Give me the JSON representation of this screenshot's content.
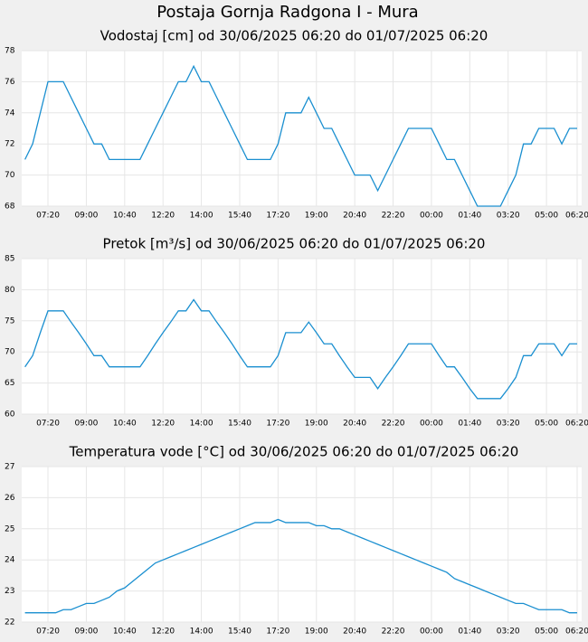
{
  "title": "Postaja Gornja Radgona I - Mura",
  "chart_data": [
    {
      "type": "line",
      "title": "Vodostaj [cm] od 30/06/2025 06:20 do 01/07/2025 06:20",
      "x": [
        "06:20",
        "06:40",
        "07:00",
        "07:20",
        "07:40",
        "08:00",
        "08:20",
        "08:40",
        "09:00",
        "09:20",
        "09:40",
        "10:00",
        "10:20",
        "10:40",
        "11:00",
        "11:20",
        "11:40",
        "12:00",
        "12:20",
        "12:40",
        "13:00",
        "13:20",
        "13:40",
        "14:00",
        "14:20",
        "14:40",
        "15:00",
        "15:20",
        "15:40",
        "16:00",
        "16:20",
        "16:40",
        "17:00",
        "17:20",
        "17:40",
        "18:00",
        "18:20",
        "18:40",
        "19:00",
        "19:20",
        "19:40",
        "20:00",
        "20:20",
        "20:40",
        "21:00",
        "21:20",
        "21:40",
        "22:00",
        "22:20",
        "22:40",
        "23:00",
        "23:20",
        "23:40",
        "00:00",
        "00:20",
        "00:40",
        "01:00",
        "01:20",
        "01:40",
        "02:00",
        "02:20",
        "02:40",
        "03:00",
        "03:20",
        "03:40",
        "04:00",
        "04:20",
        "04:40",
        "05:00",
        "05:20",
        "05:40",
        "06:00",
        "06:20"
      ],
      "series": [
        {
          "name": "Vodostaj",
          "color": "#1a8fd0",
          "values": [
            71,
            72,
            74,
            76,
            76,
            76,
            75,
            74,
            73,
            72,
            72,
            71,
            71,
            71,
            71,
            71,
            72,
            73,
            74,
            75,
            76,
            76,
            77,
            76,
            76,
            75,
            74,
            73,
            72,
            71,
            71,
            71,
            71,
            72,
            74,
            74,
            74,
            75,
            74,
            73,
            73,
            72,
            71,
            70,
            70,
            70,
            69,
            70,
            71,
            72,
            73,
            73,
            73,
            73,
            72,
            71,
            71,
            70,
            69,
            68,
            68,
            68,
            68,
            69,
            70,
            72,
            72,
            73,
            73,
            73,
            72,
            73,
            73
          ]
        }
      ],
      "xticks": [
        "07:20",
        "09:00",
        "10:40",
        "12:20",
        "14:00",
        "15:40",
        "17:20",
        "19:00",
        "20:40",
        "22:20",
        "00:00",
        "01:40",
        "03:20",
        "05:00",
        "06:20"
      ],
      "ylim": [
        68,
        78
      ],
      "yticks": [
        68,
        70,
        72,
        74,
        76,
        78
      ],
      "grid": true
    },
    {
      "type": "line",
      "title": "Pretok [m³/s] od 30/06/2025 06:20 do 01/07/2025 06:20",
      "x": [
        "06:20",
        "06:40",
        "07:00",
        "07:20",
        "07:40",
        "08:00",
        "08:20",
        "08:40",
        "09:00",
        "09:20",
        "09:40",
        "10:00",
        "10:20",
        "10:40",
        "11:00",
        "11:20",
        "11:40",
        "12:00",
        "12:20",
        "12:40",
        "13:00",
        "13:20",
        "13:40",
        "14:00",
        "14:20",
        "14:40",
        "15:00",
        "15:20",
        "15:40",
        "16:00",
        "16:20",
        "16:40",
        "17:00",
        "17:20",
        "17:40",
        "18:00",
        "18:20",
        "18:40",
        "19:00",
        "19:20",
        "19:40",
        "20:00",
        "20:20",
        "20:40",
        "21:00",
        "21:20",
        "21:40",
        "22:00",
        "22:20",
        "22:40",
        "23:00",
        "23:20",
        "23:40",
        "00:00",
        "00:20",
        "00:40",
        "01:00",
        "01:20",
        "01:40",
        "02:00",
        "02:20",
        "02:40",
        "03:00",
        "03:20",
        "03:40",
        "04:00",
        "04:20",
        "04:40",
        "05:00",
        "05:20",
        "05:40",
        "06:00",
        "06:20"
      ],
      "series": [
        {
          "name": "Pretok",
          "color": "#1a8fd0",
          "values": [
            67.6,
            69.4,
            73.1,
            76.6,
            76.6,
            76.6,
            74.8,
            73.1,
            71.3,
            69.4,
            69.4,
            67.6,
            67.6,
            67.6,
            67.6,
            67.6,
            69.4,
            71.3,
            73.1,
            74.8,
            76.6,
            76.6,
            78.4,
            76.6,
            76.6,
            74.8,
            73.1,
            71.3,
            69.4,
            67.6,
            67.6,
            67.6,
            67.6,
            69.4,
            73.1,
            73.1,
            73.1,
            74.8,
            73.1,
            71.3,
            71.3,
            69.4,
            67.6,
            65.9,
            65.9,
            65.9,
            64.1,
            65.9,
            67.6,
            69.4,
            71.3,
            71.3,
            71.3,
            71.3,
            69.4,
            67.6,
            67.6,
            65.9,
            64.1,
            62.5,
            62.5,
            62.5,
            62.5,
            64.1,
            65.9,
            69.4,
            69.4,
            71.3,
            71.3,
            71.3,
            69.4,
            71.3,
            71.3
          ]
        }
      ],
      "xticks": [
        "07:20",
        "09:00",
        "10:40",
        "12:20",
        "14:00",
        "15:40",
        "17:20",
        "19:00",
        "20:40",
        "22:20",
        "00:00",
        "01:40",
        "03:20",
        "05:00",
        "06:20"
      ],
      "ylim": [
        60,
        85
      ],
      "yticks": [
        60,
        65,
        70,
        75,
        80,
        85
      ],
      "grid": true
    },
    {
      "type": "line",
      "title": "Temperatura vode [°C] od 30/06/2025 06:20 do 01/07/2025 06:20",
      "x": [
        "06:20",
        "06:40",
        "07:00",
        "07:20",
        "07:40",
        "08:00",
        "08:20",
        "08:40",
        "09:00",
        "09:20",
        "09:40",
        "10:00",
        "10:20",
        "10:40",
        "11:00",
        "11:20",
        "11:40",
        "12:00",
        "12:20",
        "12:40",
        "13:00",
        "13:20",
        "13:40",
        "14:00",
        "14:20",
        "14:40",
        "15:00",
        "15:20",
        "15:40",
        "16:00",
        "16:20",
        "16:40",
        "17:00",
        "17:20",
        "17:40",
        "18:00",
        "18:20",
        "18:40",
        "19:00",
        "19:20",
        "19:40",
        "20:00",
        "20:20",
        "20:40",
        "21:00",
        "21:20",
        "21:40",
        "22:00",
        "22:20",
        "22:40",
        "23:00",
        "23:20",
        "23:40",
        "00:00",
        "00:20",
        "00:40",
        "01:00",
        "01:20",
        "01:40",
        "02:00",
        "02:20",
        "02:40",
        "03:00",
        "03:20",
        "03:40",
        "04:00",
        "04:20",
        "04:40",
        "05:00",
        "05:20",
        "05:40",
        "06:00",
        "06:20"
      ],
      "series": [
        {
          "name": "Temperatura vode",
          "color": "#1a8fd0",
          "values": [
            22.3,
            22.3,
            22.3,
            22.3,
            22.3,
            22.4,
            22.4,
            22.5,
            22.6,
            22.6,
            22.7,
            22.8,
            23.0,
            23.1,
            23.3,
            23.5,
            23.7,
            23.9,
            24.0,
            24.1,
            24.2,
            24.3,
            24.4,
            24.5,
            24.6,
            24.7,
            24.8,
            24.9,
            25.0,
            25.1,
            25.2,
            25.2,
            25.2,
            25.3,
            25.2,
            25.2,
            25.2,
            25.2,
            25.1,
            25.1,
            25.0,
            25.0,
            24.9,
            24.8,
            24.7,
            24.6,
            24.5,
            24.4,
            24.3,
            24.2,
            24.1,
            24.0,
            23.9,
            23.8,
            23.7,
            23.6,
            23.4,
            23.3,
            23.2,
            23.1,
            23.0,
            22.9,
            22.8,
            22.7,
            22.6,
            22.6,
            22.5,
            22.4,
            22.4,
            22.4,
            22.4,
            22.3,
            22.3
          ]
        }
      ],
      "xticks": [
        "07:20",
        "09:00",
        "10:40",
        "12:20",
        "14:00",
        "15:40",
        "17:20",
        "19:00",
        "20:40",
        "22:20",
        "00:00",
        "01:40",
        "03:20",
        "05:00",
        "06:20"
      ],
      "ylim": [
        22,
        27
      ],
      "yticks": [
        22,
        23,
        24,
        25,
        26,
        27
      ],
      "grid": true
    }
  ]
}
